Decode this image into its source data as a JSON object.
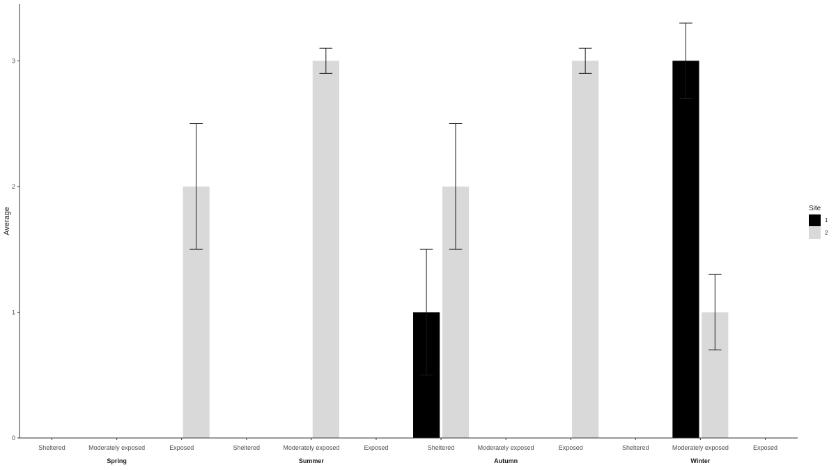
{
  "chart_data": {
    "type": "bar",
    "ylabel": "Average",
    "xlabel": "",
    "ylim": [
      0,
      3.45
    ],
    "yticks": [
      "0",
      "1",
      "2",
      "3"
    ],
    "grid": false,
    "legend": {
      "title": "Site",
      "position": "right"
    },
    "groups": [
      "Spring",
      "Summer",
      "Autumn",
      "Winter"
    ],
    "categories": [
      "Sheltered",
      "Moderately exposed",
      "Exposed"
    ],
    "series": [
      {
        "name": "1",
        "color": "#000000",
        "values": [
          [
            null,
            null,
            null
          ],
          [
            null,
            null,
            null
          ],
          [
            1,
            null,
            null
          ],
          [
            null,
            3,
            null
          ]
        ],
        "errors": [
          [
            null,
            null,
            null
          ],
          [
            null,
            null,
            null
          ],
          [
            0.5,
            null,
            null
          ],
          [
            null,
            0.3,
            null
          ]
        ]
      },
      {
        "name": "2",
        "color": "#d9d9d9",
        "values": [
          [
            null,
            null,
            2
          ],
          [
            null,
            3,
            null
          ],
          [
            2,
            null,
            3
          ],
          [
            null,
            1,
            null
          ]
        ],
        "errors": [
          [
            null,
            null,
            0.5
          ],
          [
            null,
            0.1,
            null
          ],
          [
            0.5,
            null,
            0.1
          ],
          [
            null,
            0.3,
            null
          ]
        ]
      }
    ]
  }
}
